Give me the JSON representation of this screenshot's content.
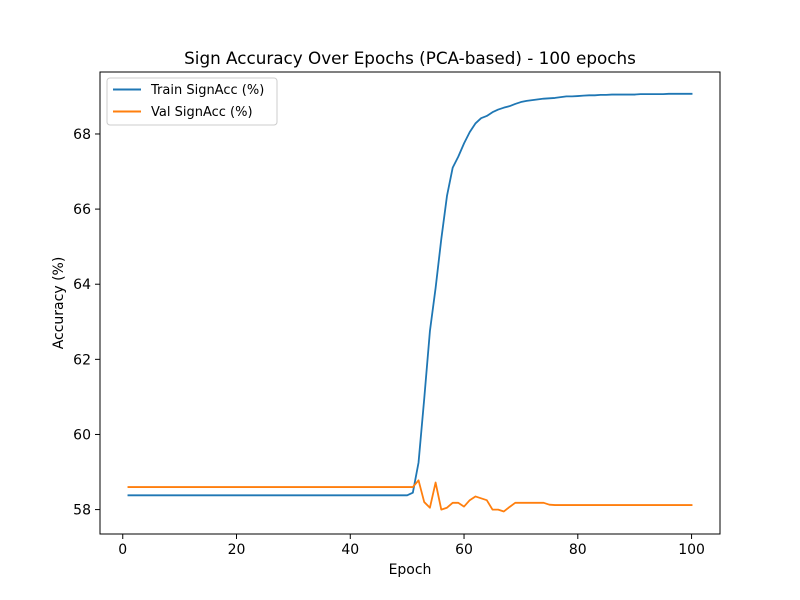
{
  "chart_data": {
    "type": "line",
    "title": "Sign Accuracy Over Epochs (PCA-based) - 100 epochs",
    "xlabel": "Epoch",
    "ylabel": "Accuracy (%)",
    "xlim": [
      -4,
      105
    ],
    "ylim": [
      57.35,
      69.65
    ],
    "xticks": [
      0,
      20,
      40,
      60,
      80,
      100
    ],
    "yticks": [
      58,
      60,
      62,
      64,
      66,
      68
    ],
    "grid": false,
    "legend_position": "top-left",
    "x": [
      1,
      2,
      3,
      4,
      5,
      6,
      7,
      8,
      9,
      10,
      11,
      12,
      13,
      14,
      15,
      16,
      17,
      18,
      19,
      20,
      21,
      22,
      23,
      24,
      25,
      26,
      27,
      28,
      29,
      30,
      31,
      32,
      33,
      34,
      35,
      36,
      37,
      38,
      39,
      40,
      41,
      42,
      43,
      44,
      45,
      46,
      47,
      48,
      49,
      50,
      51,
      52,
      53,
      54,
      55,
      56,
      57,
      58,
      59,
      60,
      61,
      62,
      63,
      64,
      65,
      66,
      67,
      68,
      69,
      70,
      71,
      72,
      73,
      74,
      75,
      76,
      77,
      78,
      79,
      80,
      81,
      82,
      83,
      84,
      85,
      86,
      87,
      88,
      89,
      90,
      91,
      92,
      93,
      94,
      95,
      96,
      97,
      98,
      99,
      100
    ],
    "series": [
      {
        "name": "Train SignAcc (%)",
        "color": "#1f77b4",
        "values": [
          58.38,
          58.38,
          58.38,
          58.38,
          58.38,
          58.38,
          58.38,
          58.38,
          58.38,
          58.38,
          58.38,
          58.38,
          58.38,
          58.38,
          58.38,
          58.38,
          58.38,
          58.38,
          58.38,
          58.38,
          58.38,
          58.38,
          58.38,
          58.38,
          58.38,
          58.38,
          58.38,
          58.38,
          58.38,
          58.38,
          58.38,
          58.38,
          58.38,
          58.38,
          58.38,
          58.38,
          58.38,
          58.38,
          58.38,
          58.38,
          58.38,
          58.38,
          58.38,
          58.38,
          58.38,
          58.38,
          58.38,
          58.38,
          58.38,
          58.38,
          58.45,
          59.25,
          60.95,
          62.75,
          63.9,
          65.2,
          66.35,
          67.1,
          67.4,
          67.75,
          68.05,
          68.28,
          68.42,
          68.48,
          68.58,
          68.65,
          68.7,
          68.74,
          68.8,
          68.85,
          68.88,
          68.9,
          68.92,
          68.94,
          68.95,
          68.96,
          68.98,
          69.0,
          69.0,
          69.01,
          69.02,
          69.03,
          69.03,
          69.04,
          69.04,
          69.05,
          69.05,
          69.05,
          69.05,
          69.05,
          69.06,
          69.06,
          69.06,
          69.06,
          69.06,
          69.07,
          69.07,
          69.07,
          69.07,
          69.07
        ]
      },
      {
        "name": "Val SignAcc (%)",
        "color": "#ff7f0e",
        "values": [
          58.6,
          58.6,
          58.6,
          58.6,
          58.6,
          58.6,
          58.6,
          58.6,
          58.6,
          58.6,
          58.6,
          58.6,
          58.6,
          58.6,
          58.6,
          58.6,
          58.6,
          58.6,
          58.6,
          58.6,
          58.6,
          58.6,
          58.6,
          58.6,
          58.6,
          58.6,
          58.6,
          58.6,
          58.6,
          58.6,
          58.6,
          58.6,
          58.6,
          58.6,
          58.6,
          58.6,
          58.6,
          58.6,
          58.6,
          58.6,
          58.6,
          58.6,
          58.6,
          58.6,
          58.6,
          58.6,
          58.6,
          58.6,
          58.6,
          58.6,
          58.6,
          58.78,
          58.2,
          58.05,
          58.72,
          58.0,
          58.05,
          58.18,
          58.18,
          58.08,
          58.25,
          58.35,
          58.3,
          58.25,
          58.0,
          58.0,
          57.95,
          58.07,
          58.18,
          58.18,
          58.18,
          58.18,
          58.18,
          58.18,
          58.13,
          58.12,
          58.12,
          58.12,
          58.12,
          58.12,
          58.12,
          58.12,
          58.12,
          58.12,
          58.12,
          58.12,
          58.12,
          58.12,
          58.12,
          58.12,
          58.12,
          58.12,
          58.12,
          58.12,
          58.12,
          58.12,
          58.12,
          58.12,
          58.12,
          58.12
        ]
      }
    ]
  }
}
